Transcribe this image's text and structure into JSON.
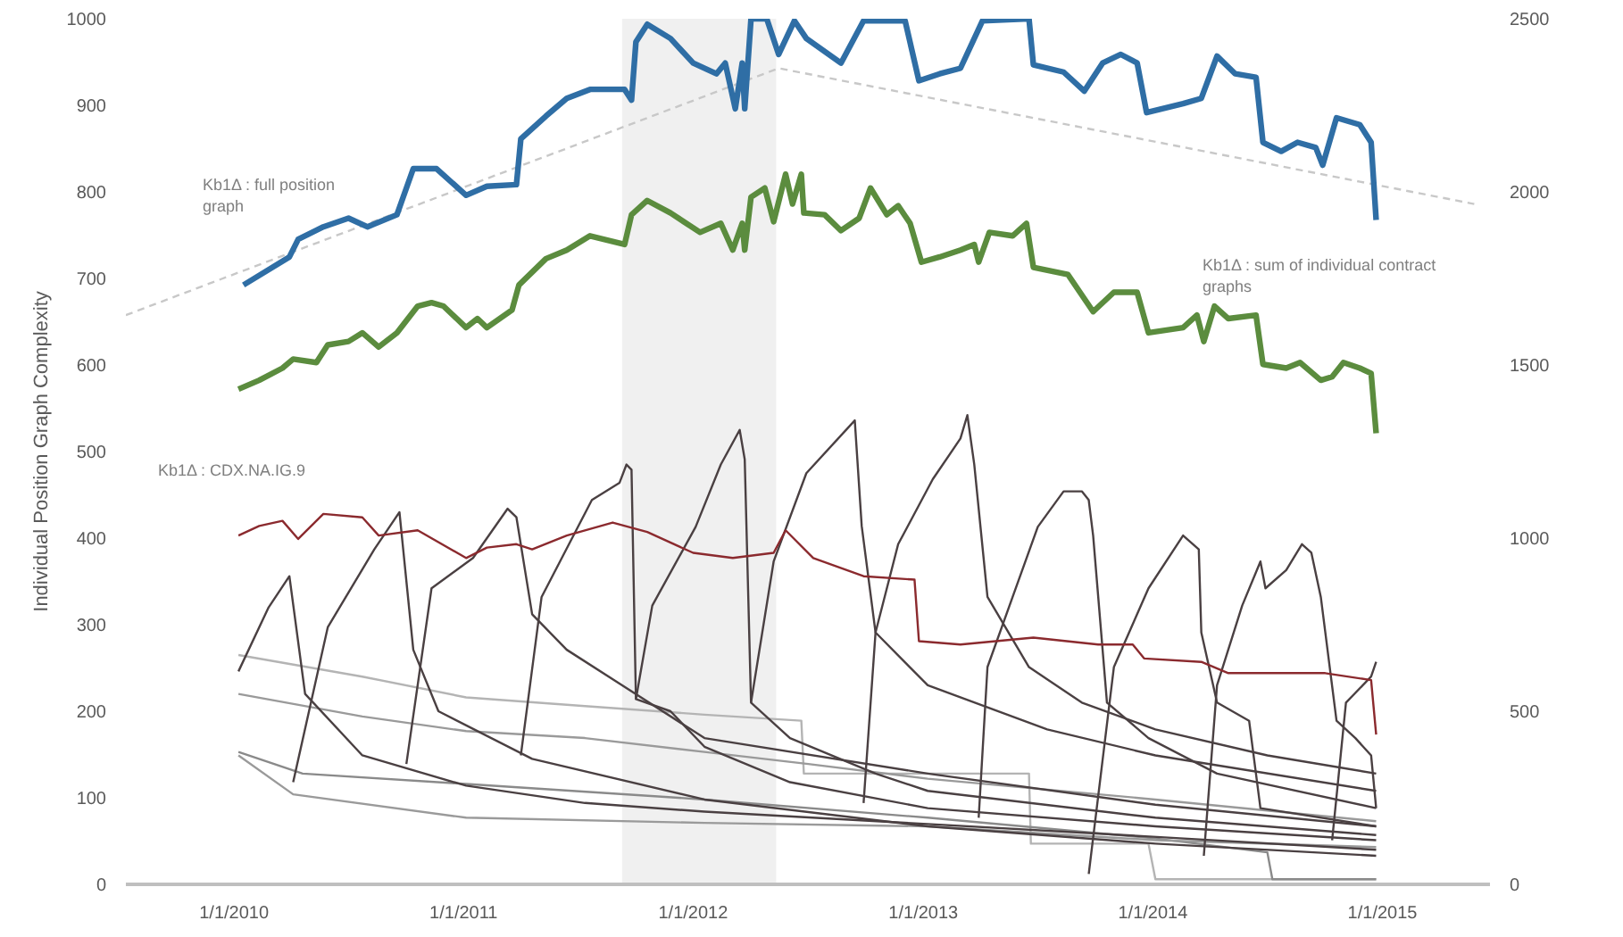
{
  "chart_data": {
    "type": "line",
    "ylabel": "Individual Position Graph Complexity",
    "xlim": [
      "2009-07-13",
      "2015-06-21"
    ],
    "xticks": [
      {
        "value": "2010-01-01",
        "label": "1/1/2010"
      },
      {
        "value": "2011-01-01",
        "label": "1/1/2011"
      },
      {
        "value": "2012-01-01",
        "label": "1/1/2012"
      },
      {
        "value": "2013-01-01",
        "label": "1/1/2013"
      },
      {
        "value": "2014-01-01",
        "label": "1/1/2014"
      },
      {
        "value": "2015-01-01",
        "label": "1/1/2015"
      }
    ],
    "ylim": [
      0,
      1000
    ],
    "yticks": [
      0,
      100,
      200,
      300,
      400,
      500,
      600,
      700,
      800,
      900,
      1000
    ],
    "y2lim": [
      0,
      2500
    ],
    "y2ticks": [
      0,
      500,
      1000,
      1500,
      2000,
      2500
    ],
    "grid": false,
    "marker": "none",
    "bands": [
      {
        "axis": "x",
        "from": "2011-09-10",
        "to": "2012-05-12",
        "color": "#f0f0f0"
      }
    ],
    "annotations": [
      "Kb1Δ : full position graph",
      "Kb1Δ : sum of individual contract graphs",
      "Kb1Δ : CDX.NA.IG.9"
    ],
    "series": [
      {
        "color": "#c8c8c8",
        "axis": "y2",
        "line_style": "dashed",
        "x": [
          "2009-07-13",
          "2012-05-16",
          "2015-05-27"
        ],
        "values": [
          1644,
          2357,
          1965
        ]
      },
      {
        "color": "#b4b4b4",
        "x": [
          "2010-01-08",
          "2010-07-24",
          "2011-01-05",
          "2011-07-13",
          "2012-01-19",
          "2012-06-21",
          "2012-06-25",
          "2013-01-08",
          "2013-06-18",
          "2013-06-21",
          "2013-12-25",
          "2014-01-05",
          "2014-12-22"
        ],
        "values": [
          265,
          240,
          216,
          206,
          196,
          189,
          128,
          128,
          128,
          47,
          47,
          6,
          6
        ]
      },
      {
        "color": "#9a9a9a",
        "x": [
          "2010-01-08",
          "2010-07-24",
          "2011-01-05",
          "2011-07-13",
          "2012-01-19",
          "2012-07-02",
          "2013-01-08",
          "2014-01-05",
          "2014-12-22"
        ],
        "values": [
          220,
          194,
          177,
          169,
          153,
          139,
          122,
          98,
          73
        ]
      },
      {
        "color": "#8a8a8a",
        "x": [
          "2010-01-08",
          "2010-04-20",
          "2011-01-05",
          "2012-01-19",
          "2013-01-08",
          "2014-01-05",
          "2014-07-02",
          "2014-07-10",
          "2014-12-22"
        ],
        "values": [
          153,
          128,
          116,
          98,
          77,
          53,
          37,
          6,
          6
        ]
      },
      {
        "color": "#9a9a9a",
        "x": [
          "2010-01-08",
          "2010-04-05",
          "2011-01-05",
          "2012-01-19",
          "2013-01-08",
          "2014-01-05",
          "2014-12-22"
        ],
        "values": [
          149,
          104,
          77,
          71,
          67,
          51,
          43
        ]
      },
      {
        "color": "#4a4042",
        "x": [
          "2010-01-08",
          "2010-02-25",
          "2010-03-30",
          "2010-04-24",
          "2010-07-24",
          "2011-01-05",
          "2011-07-13",
          "2012-01-19",
          "2013-01-01",
          "2014-01-01",
          "2014-12-22"
        ],
        "values": [
          246,
          320,
          356,
          220,
          149,
          114,
          94,
          84,
          70,
          55,
          40
        ]
      },
      {
        "color": "#4a4042",
        "x": [
          "2010-04-05",
          "2010-05-30",
          "2010-08-12",
          "2010-09-21",
          "2010-10-13",
          "2010-11-22",
          "2011-04-20",
          "2012-01-19",
          "2013-01-08",
          "2014-01-05",
          "2014-12-22"
        ],
        "values": [
          118,
          297,
          387,
          430,
          271,
          200,
          145,
          98,
          67,
          47,
          33
        ]
      },
      {
        "color": "#4a4042",
        "x": [
          "2010-10-02",
          "2010-11-11",
          "2011-01-16",
          "2011-03-12",
          "2011-03-26",
          "2011-04-20",
          "2011-06-14",
          "2012-01-19",
          "2013-01-08",
          "2014-01-05",
          "2014-12-22"
        ],
        "values": [
          139,
          342,
          377,
          434,
          424,
          312,
          271,
          169,
          128,
          92,
          67
        ]
      },
      {
        "color": "#4a4042",
        "x": [
          "2011-04-02",
          "2011-05-05",
          "2011-07-24",
          "2011-09-06",
          "2011-09-17",
          "2011-09-25",
          "2011-10-02",
          "2011-11-26",
          "2012-01-19",
          "2012-06-03",
          "2013-01-08",
          "2014-01-05",
          "2014-12-22"
        ],
        "values": [
          149,
          332,
          444,
          464,
          485,
          479,
          214,
          200,
          159,
          118,
          88,
          67,
          51
        ]
      },
      {
        "color": "#4a4042",
        "x": [
          "2011-10-02",
          "2011-10-28",
          "2012-01-05",
          "2012-02-14",
          "2012-03-15",
          "2012-03-23",
          "2012-04-02",
          "2012-06-03",
          "2012-10-17",
          "2013-01-08",
          "2014-01-05",
          "2014-12-22"
        ],
        "values": [
          214,
          322,
          413,
          485,
          525,
          491,
          210,
          169,
          128,
          108,
          77,
          57
        ]
      },
      {
        "color": "#4a4042",
        "x": [
          "2012-04-02",
          "2012-05-08",
          "2012-06-29",
          "2012-09-14",
          "2012-09-25",
          "2012-10-17",
          "2013-01-08",
          "2013-07-17",
          "2014-01-05",
          "2014-12-22"
        ],
        "values": [
          210,
          373,
          475,
          536,
          414,
          291,
          230,
          179,
          149,
          108
        ]
      },
      {
        "color": "#4a4042",
        "x": [
          "2012-09-28",
          "2012-10-17",
          "2012-11-22",
          "2013-01-16",
          "2013-03-01",
          "2013-03-12",
          "2013-03-23",
          "2013-04-13",
          "2013-06-18",
          "2013-09-10",
          "2014-01-05",
          "2014-07-02",
          "2014-12-22"
        ],
        "values": [
          94,
          291,
          393,
          468,
          515,
          542,
          485,
          332,
          251,
          210,
          179,
          149,
          128
        ]
      },
      {
        "color": "#4a4042",
        "x": [
          "2013-03-30",
          "2013-04-13",
          "2013-05-23",
          "2013-07-02",
          "2013-08-12",
          "2013-09-10",
          "2013-09-21",
          "2013-09-28",
          "2013-10-20",
          "2013-12-25",
          "2014-04-13",
          "2014-12-22"
        ],
        "values": [
          77,
          251,
          332,
          413,
          454,
          454,
          444,
          403,
          210,
          169,
          128,
          88
        ]
      },
      {
        "color": "#4a4042",
        "x": [
          "2013-09-21",
          "2013-10-31",
          "2013-12-25",
          "2014-02-18",
          "2014-03-15",
          "2014-03-19",
          "2014-04-13",
          "2014-06-03",
          "2014-06-21",
          "2014-12-22"
        ],
        "values": [
          12,
          251,
          342,
          403,
          387,
          291,
          210,
          189,
          88,
          67
        ]
      },
      {
        "color": "#4a4042",
        "x": [
          "2014-03-23",
          "2014-04-13",
          "2014-05-23",
          "2014-06-21",
          "2014-06-29",
          "2014-08-01",
          "2014-08-26",
          "2014-09-10",
          "2014-09-25",
          "2014-10-20",
          "2014-11-19",
          "2014-12-14",
          "2014-12-22"
        ],
        "values": [
          33,
          230,
          322,
          373,
          342,
          363,
          393,
          383,
          332,
          189,
          169,
          149,
          88
        ]
      },
      {
        "color": "#4a4042",
        "x": [
          "2014-10-13",
          "2014-11-04",
          "2014-12-14",
          "2014-12-22"
        ],
        "values": [
          51,
          210,
          240,
          257
        ]
      },
      {
        "color": "#8b2a2e",
        "x": [
          "2010-01-08",
          "2010-02-10",
          "2010-03-19",
          "2010-04-13",
          "2010-05-23",
          "2010-07-24",
          "2010-08-19",
          "2010-10-20",
          "2011-01-05",
          "2011-02-07",
          "2011-03-26",
          "2011-04-20",
          "2011-06-14",
          "2011-08-26",
          "2011-10-20",
          "2012-01-01",
          "2012-03-04",
          "2012-05-08",
          "2012-05-27",
          "2012-07-10",
          "2012-09-28",
          "2012-12-18",
          "2012-12-25",
          "2013-03-01",
          "2013-06-25",
          "2013-10-06",
          "2013-11-30",
          "2013-12-18",
          "2014-03-19",
          "2014-05-01",
          "2014-10-02",
          "2014-12-14",
          "2014-12-22"
        ],
        "values": [
          403,
          414,
          420,
          399,
          428,
          424,
          403,
          409,
          377,
          389,
          393,
          387,
          403,
          418,
          407,
          383,
          377,
          383,
          409,
          377,
          356,
          352,
          281,
          277,
          285,
          277,
          277,
          261,
          257,
          244,
          244,
          236,
          173
        ]
      },
      {
        "color": "#5b8c3e",
        "axis": "y2",
        "x": [
          "2010-01-08",
          "2010-02-10",
          "2010-03-19",
          "2010-04-05",
          "2010-05-12",
          "2010-05-30",
          "2010-07-02",
          "2010-07-24",
          "2010-08-19",
          "2010-09-17",
          "2010-10-20",
          "2010-11-11",
          "2010-11-30",
          "2011-01-05",
          "2011-01-23",
          "2011-02-07",
          "2011-03-19",
          "2011-03-30",
          "2011-05-12",
          "2011-06-14",
          "2011-07-21",
          "2011-09-14",
          "2011-09-25",
          "2011-10-20",
          "2011-11-26",
          "2012-01-12",
          "2012-02-14",
          "2012-03-04",
          "2012-03-19",
          "2012-03-23",
          "2012-04-02",
          "2012-04-24",
          "2012-05-08",
          "2012-05-27",
          "2012-06-07",
          "2012-06-21",
          "2012-06-25",
          "2012-07-28",
          "2012-08-23",
          "2012-09-21",
          "2012-10-09",
          "2012-11-04",
          "2012-11-22",
          "2012-12-11",
          "2012-12-29",
          "2013-01-27",
          "2013-03-01",
          "2013-03-23",
          "2013-03-30",
          "2013-04-16",
          "2013-05-23",
          "2013-06-14",
          "2013-06-25",
          "2013-08-19",
          "2013-09-28",
          "2013-10-31",
          "2013-12-07",
          "2013-12-25",
          "2014-02-18",
          "2014-03-12",
          "2014-03-23",
          "2014-04-09",
          "2014-05-01",
          "2014-06-14",
          "2014-06-25",
          "2014-08-01",
          "2014-08-23",
          "2014-09-25",
          "2014-10-13",
          "2014-10-31",
          "2014-11-26",
          "2014-12-14",
          "2014-12-22"
        ],
        "values": [
          1430,
          1456,
          1491,
          1517,
          1507,
          1558,
          1568,
          1593,
          1552,
          1593,
          1670,
          1680,
          1670,
          1608,
          1634,
          1608,
          1659,
          1731,
          1807,
          1832,
          1873,
          1848,
          1934,
          1975,
          1939,
          1883,
          1909,
          1832,
          1909,
          1832,
          1985,
          2011,
          1914,
          2051,
          1965,
          2051,
          1939,
          1934,
          1888,
          1924,
          2011,
          1934,
          1960,
          1909,
          1797,
          1812,
          1832,
          1848,
          1797,
          1883,
          1873,
          1909,
          1782,
          1761,
          1654,
          1710,
          1710,
          1593,
          1608,
          1644,
          1568,
          1670,
          1634,
          1644,
          1502,
          1491,
          1507,
          1456,
          1466,
          1507,
          1491,
          1476,
          1303
        ]
      },
      {
        "color": "#2f6ea5",
        "axis": "y2",
        "x": [
          "2010-01-16",
          "2010-03-30",
          "2010-04-13",
          "2010-05-23",
          "2010-07-02",
          "2010-08-01",
          "2010-09-17",
          "2010-10-13",
          "2010-11-19",
          "2011-01-05",
          "2011-02-07",
          "2011-03-26",
          "2011-04-02",
          "2011-05-12",
          "2011-06-14",
          "2011-07-21",
          "2011-09-14",
          "2011-09-25",
          "2011-10-02",
          "2011-10-20",
          "2011-11-26",
          "2012-01-01",
          "2012-02-07",
          "2012-02-21",
          "2012-03-08",
          "2012-03-19",
          "2012-03-23",
          "2012-04-02",
          "2012-04-27",
          "2012-05-16",
          "2012-06-10",
          "2012-06-29",
          "2012-08-23",
          "2012-09-28",
          "2012-12-03",
          "2012-12-25",
          "2013-01-27",
          "2013-03-01",
          "2013-04-05",
          "2013-06-18",
          "2013-06-25",
          "2013-08-12",
          "2013-09-14",
          "2013-10-13",
          "2013-11-11",
          "2013-12-07",
          "2013-12-22",
          "2014-02-18",
          "2014-03-19",
          "2014-04-13",
          "2014-05-12",
          "2014-06-14",
          "2014-06-25",
          "2014-07-24",
          "2014-08-19",
          "2014-09-17",
          "2014-09-28",
          "2014-10-20",
          "2014-11-26",
          "2014-12-14",
          "2014-12-22"
        ],
        "values": [
          1731,
          1812,
          1863,
          1899,
          1924,
          1899,
          1934,
          2067,
          2067,
          1990,
          2016,
          2021,
          2153,
          2219,
          2270,
          2296,
          2296,
          2265,
          2433,
          2484,
          2443,
          2372,
          2341,
          2372,
          2240,
          2372,
          2240,
          2500,
          2500,
          2397,
          2494,
          2443,
          2372,
          2494,
          2494,
          2321,
          2341,
          2357,
          2494,
          2500,
          2367,
          2346,
          2291,
          2372,
          2397,
          2372,
          2229,
          2255,
          2270,
          2392,
          2341,
          2331,
          2143,
          2117,
          2143,
          2128,
          2077,
          2214,
          2194,
          2143,
          1919
        ]
      }
    ]
  }
}
